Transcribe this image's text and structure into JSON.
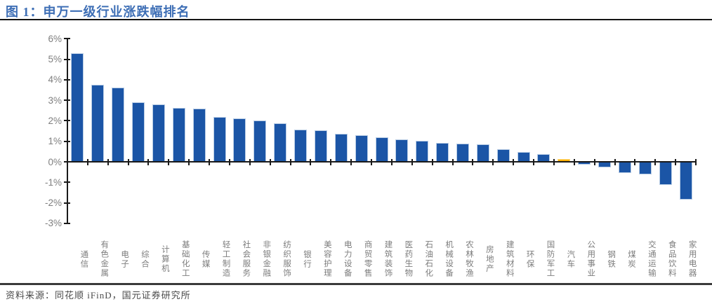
{
  "figure": {
    "title": "图 1：申万一级行业涨跌幅排名",
    "source": "资料来源：同花顺 iFinD，国元证券研究所"
  },
  "chart_data": {
    "type": "bar",
    "title": "申万一级行业涨跌幅排名",
    "categories": [
      "通信",
      "有色金属",
      "电子",
      "综合",
      "计算机",
      "基础化工",
      "传媒",
      "轻工制造",
      "社会服务",
      "非银金融",
      "纺织服饰",
      "银行",
      "美容护理",
      "电力设备",
      "商贸零售",
      "建筑装饰",
      "医药生物",
      "石油石化",
      "机械设备",
      "农林牧渔",
      "房地产",
      "建筑材料",
      "环保",
      "国防军工",
      "汽车",
      "公用事业",
      "钢铁",
      "煤炭",
      "交通运输",
      "食品饮料",
      "家用电器"
    ],
    "values": [
      5.3,
      3.77,
      3.62,
      2.89,
      2.8,
      2.62,
      2.6,
      2.18,
      2.1,
      2.0,
      1.88,
      1.57,
      1.55,
      1.38,
      1.28,
      1.2,
      1.1,
      1.01,
      0.93,
      0.9,
      0.84,
      0.63,
      0.47,
      0.39,
      0.15,
      -0.15,
      -0.26,
      -0.55,
      -0.6,
      -1.12,
      -1.85
    ],
    "unit": "%",
    "ylim": [
      -3,
      6
    ],
    "ytick_step": 1,
    "ytick_labels": [
      "6%",
      "5%",
      "4%",
      "3%",
      "2%",
      "1%",
      "0%",
      "-1%",
      "-2%",
      "-3%"
    ],
    "xlabel": "",
    "ylabel": "",
    "grid": false,
    "legend": "none",
    "bar_color": "#1B55A6",
    "highlight_color": "#FAAF00",
    "highlight_index": 24
  },
  "colors": {
    "title_text": "#3D6EB5",
    "axis_text": "#7f7f7f",
    "source_text": "#4a4a4a",
    "axis_line": "#1a1a1a"
  }
}
